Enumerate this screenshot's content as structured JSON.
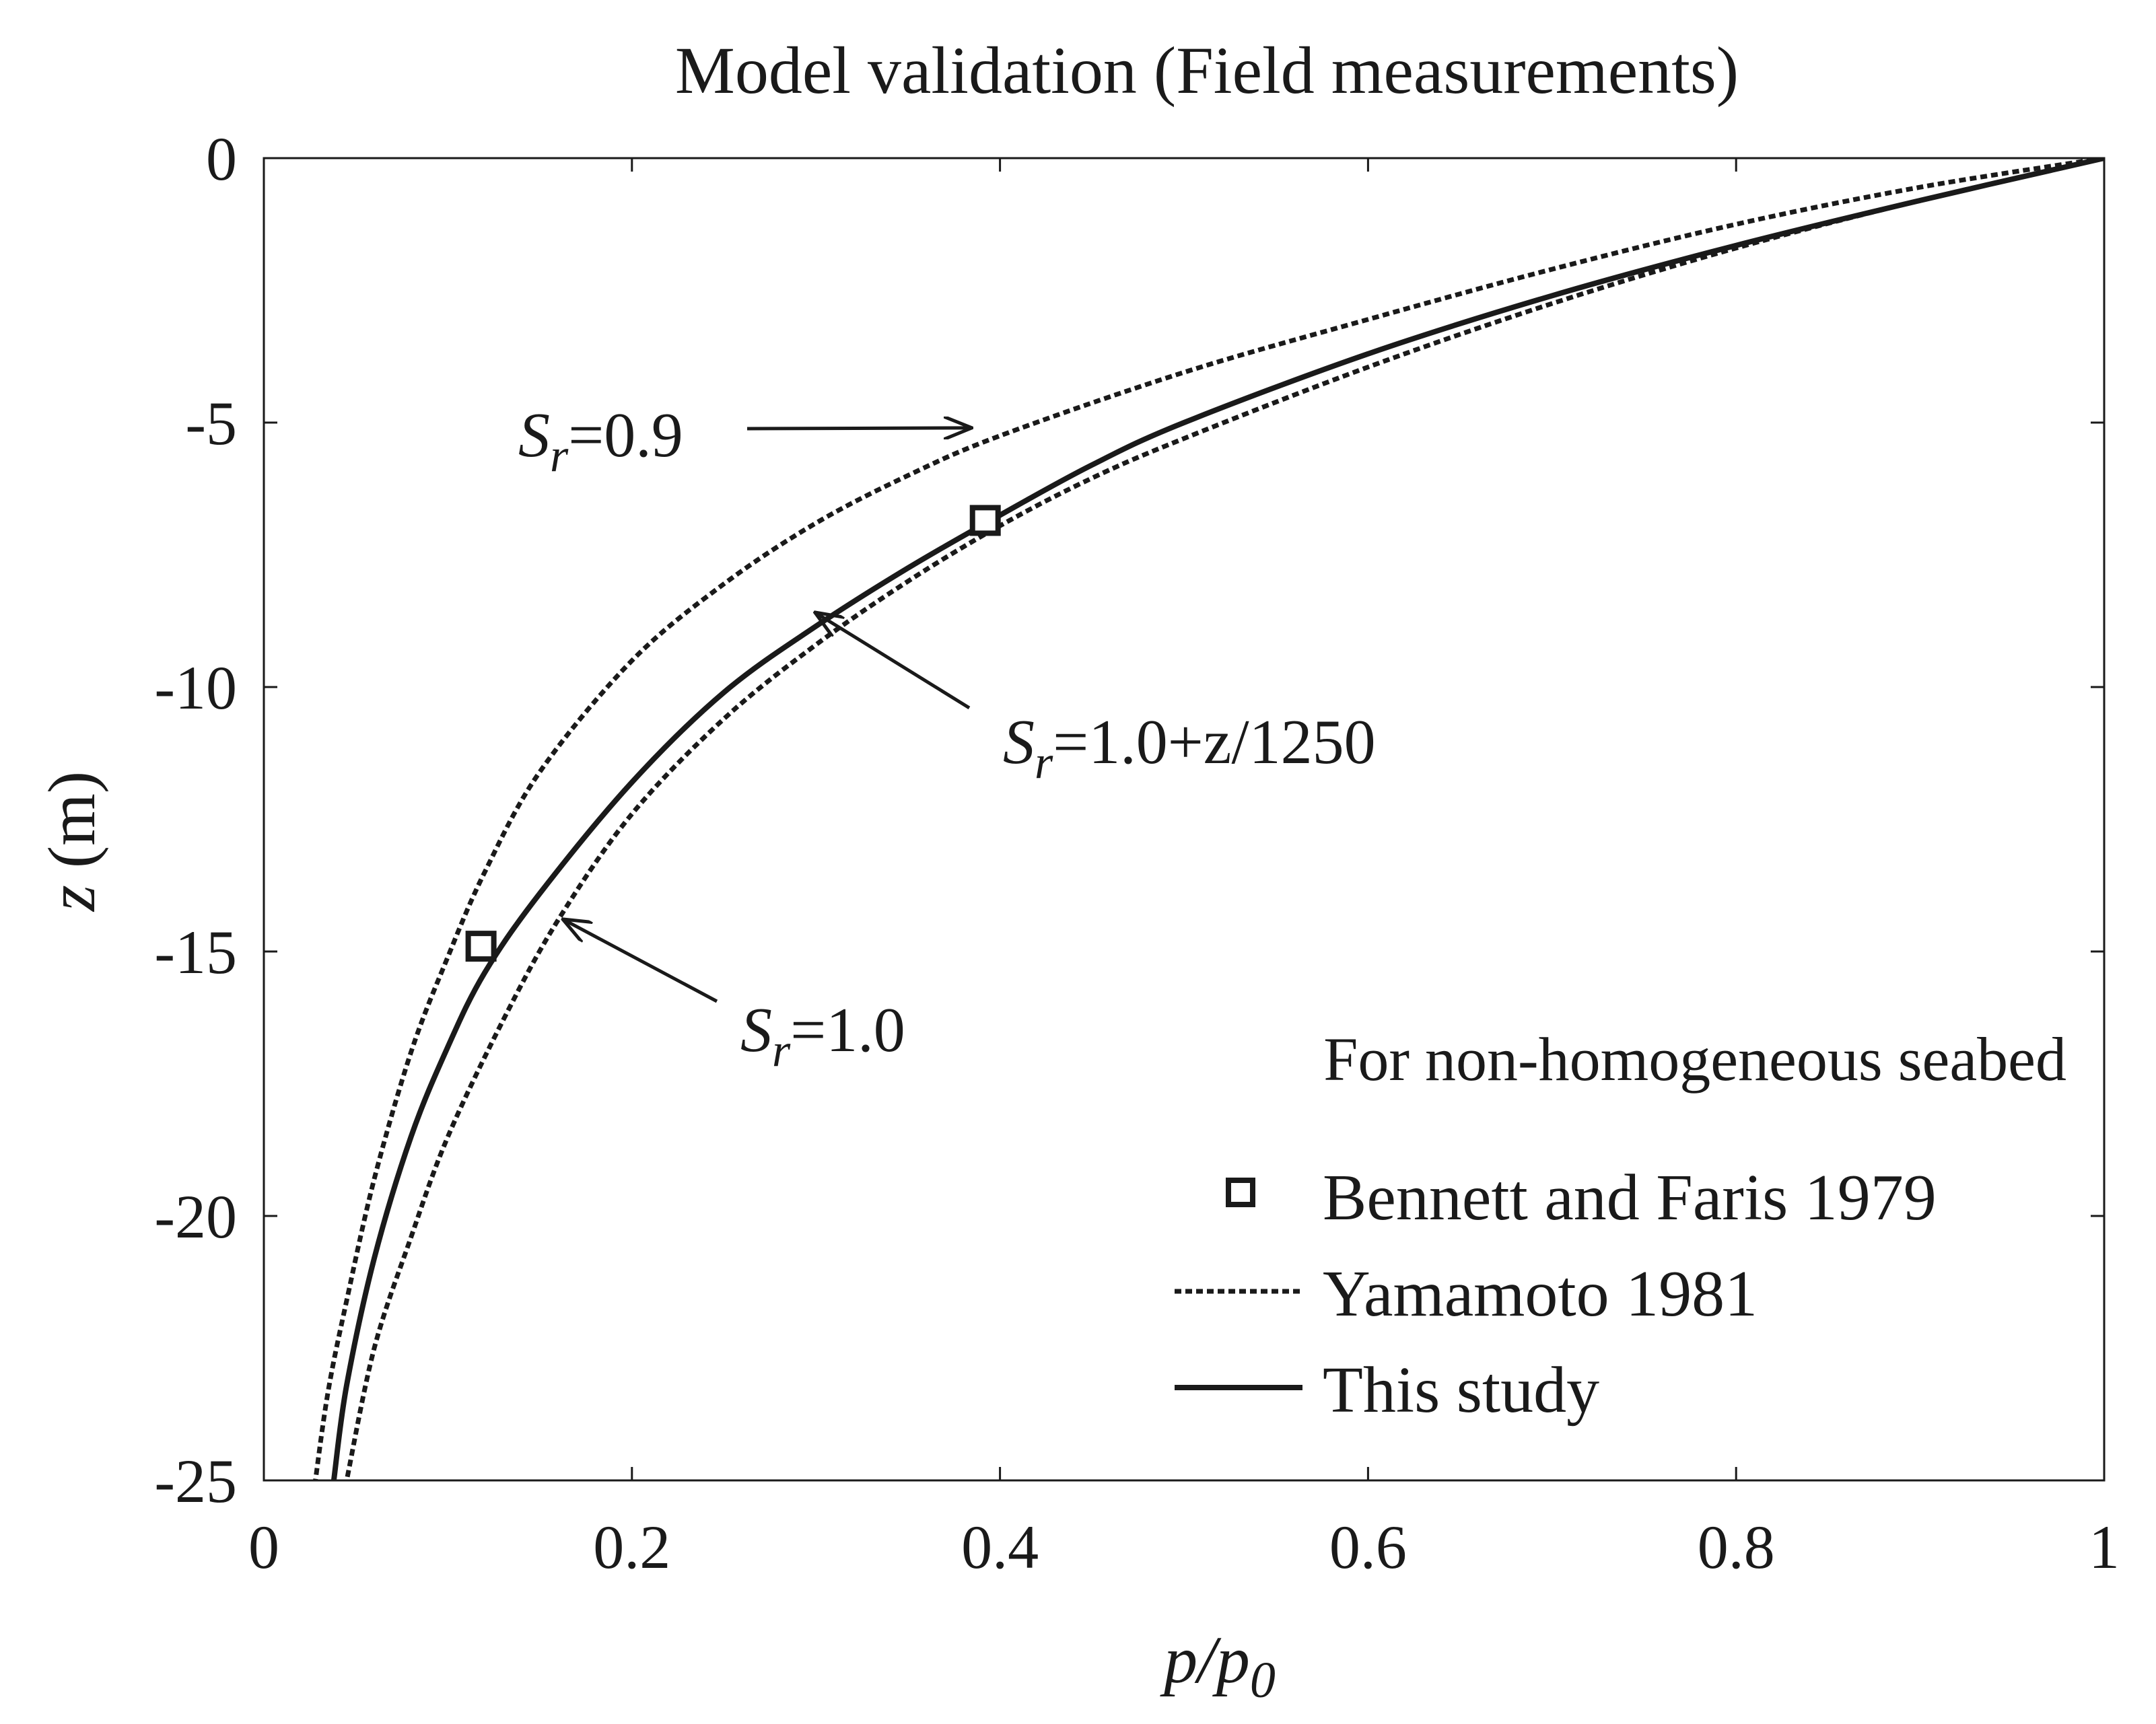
{
  "chart_data": {
    "type": "line",
    "title": "Model validation (Field measurements)",
    "xlabel": {
      "main": "p/p",
      "sub": "0"
    },
    "ylabel": {
      "main": "z",
      "unit": " (m)"
    },
    "xlim": [
      0,
      1
    ],
    "ylim": [
      -25,
      0
    ],
    "xticks": [
      0,
      0.2,
      0.4,
      0.6,
      0.8,
      1
    ],
    "xtick_labels": [
      "0",
      "0.2",
      "0.4",
      "0.6",
      "0.8",
      "1"
    ],
    "yticks": [
      0,
      -5,
      -10,
      -15,
      -20,
      -25
    ],
    "ytick_labels": [
      "0",
      "-5",
      "-10",
      "-15",
      "-20",
      "-25"
    ],
    "note": "For non-homogeneous seabed",
    "series": [
      {
        "name": "Yamamoto 1981 (S_r=0.9)",
        "style": "dotted",
        "points": [
          [
            1,
            0
          ],
          [
            0.9,
            -0.55
          ],
          [
            0.8,
            -1.25
          ],
          [
            0.7,
            -2.1
          ],
          [
            0.6,
            -3.05
          ],
          [
            0.5,
            -4.05
          ],
          [
            0.4,
            -5.25
          ],
          [
            0.35,
            -6.0
          ],
          [
            0.3,
            -6.9
          ],
          [
            0.25,
            -8.05
          ],
          [
            0.2,
            -9.5
          ],
          [
            0.15,
            -11.6
          ],
          [
            0.12,
            -13.5
          ],
          [
            0.1,
            -15.1
          ],
          [
            0.08,
            -16.9
          ],
          [
            0.06,
            -19.3
          ],
          [
            0.045,
            -21.6
          ],
          [
            0.035,
            -23.3
          ],
          [
            0.028,
            -25
          ]
        ]
      },
      {
        "name": "Yamamoto 1981 (S_r=1.0)",
        "style": "dotted",
        "points": [
          [
            1,
            0
          ],
          [
            0.9,
            -0.8
          ],
          [
            0.8,
            -1.7
          ],
          [
            0.7,
            -2.75
          ],
          [
            0.6,
            -3.95
          ],
          [
            0.5,
            -5.3
          ],
          [
            0.45,
            -6.05
          ],
          [
            0.4,
            -6.95
          ],
          [
            0.35,
            -8.0
          ],
          [
            0.3,
            -9.2
          ],
          [
            0.25,
            -10.6
          ],
          [
            0.2,
            -12.4
          ],
          [
            0.16,
            -14.4
          ],
          [
            0.13,
            -16.3
          ],
          [
            0.1,
            -18.5
          ],
          [
            0.08,
            -20.4
          ],
          [
            0.06,
            -22.5
          ],
          [
            0.045,
            -25
          ]
        ]
      },
      {
        "name": "This study",
        "style": "solid",
        "points": [
          [
            1,
            0
          ],
          [
            0.9,
            -0.8
          ],
          [
            0.8,
            -1.65
          ],
          [
            0.7,
            -2.6
          ],
          [
            0.6,
            -3.7
          ],
          [
            0.5,
            -5.0
          ],
          [
            0.45,
            -5.8
          ],
          [
            0.4,
            -6.75
          ],
          [
            0.35,
            -7.75
          ],
          [
            0.3,
            -8.85
          ],
          [
            0.25,
            -10.1
          ],
          [
            0.2,
            -11.8
          ],
          [
            0.15,
            -13.9
          ],
          [
            0.12,
            -15.4
          ],
          [
            0.1,
            -16.8
          ],
          [
            0.08,
            -18.5
          ],
          [
            0.06,
            -20.8
          ],
          [
            0.045,
            -23.2
          ],
          [
            0.038,
            -25
          ]
        ]
      }
    ],
    "markers": {
      "name": "Bennett and Faris 1979",
      "points": [
        [
          0.118,
          -14.9
        ],
        [
          0.392,
          -6.85
        ]
      ]
    },
    "legend": {
      "position": "lower-right",
      "entries": [
        {
          "label": "Bennett and Faris 1979",
          "style": "square"
        },
        {
          "label": "Yamamoto 1981",
          "style": "dotted"
        },
        {
          "label": "This study",
          "style": "solid"
        }
      ]
    },
    "annotations": [
      {
        "var": "S",
        "sub": "r",
        "text": "=0.9",
        "arrow_to": [
          0.384,
          -5.1
        ]
      },
      {
        "var": "S",
        "sub": "r",
        "text": "=1.0+z/1250",
        "arrow_to": [
          0.3,
          -8.6
        ]
      },
      {
        "var": "S",
        "sub": "r",
        "text": "=1.0",
        "arrow_to": [
          0.163,
          -14.4
        ]
      }
    ]
  }
}
